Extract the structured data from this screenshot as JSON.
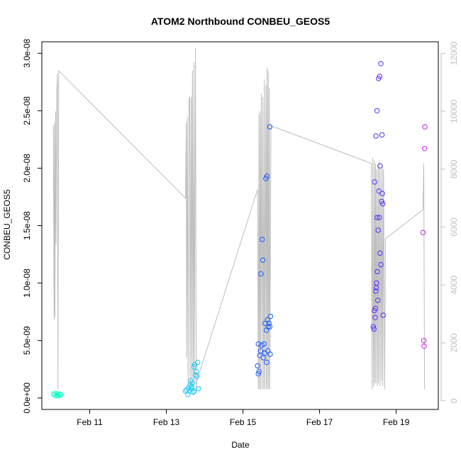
{
  "chart_data": {
    "type": "scatter",
    "title": "ATOM2 Northbound CONBEU_GEOS5",
    "xlabel": "Date",
    "ylabel": "CONBEU_GEOS5",
    "x_tick_labels": [
      "Feb 11",
      "Feb 13",
      "Feb 15",
      "Feb 17",
      "Feb 19"
    ],
    "x_ticks_day": [
      11,
      13,
      15,
      17,
      19
    ],
    "xlim_day": [
      9.75,
      20.1
    ],
    "y_tick_labels": [
      "0.0e+00",
      "5.0e-09",
      "1.0e-08",
      "1.5e-08",
      "2.0e-08",
      "2.5e-08",
      "3.0e-08"
    ],
    "y_ticks": [
      0,
      5e-09,
      1e-08,
      1.5e-08,
      2e-08,
      2.5e-08,
      3e-08
    ],
    "ylim": [
      -1e-09,
      3.1e-08
    ],
    "y2_tick_labels": [
      "0",
      "2000",
      "4000",
      "6000",
      "8000",
      "10000",
      "12000"
    ],
    "y2_ticks": [
      0,
      2000,
      4000,
      6000,
      8000,
      10000,
      12000
    ],
    "y2lim": [
      -300,
      12400
    ],
    "colors": {
      "axis": "#000000",
      "secondary_axis": "#bebebe",
      "altitude_line": "#bebebe"
    },
    "points": [
      {
        "x": 10.05,
        "y": 3.5e-10,
        "c": "#19ffc8"
      },
      {
        "x": 10.08,
        "y": 2.5e-10,
        "c": "#19ffc8"
      },
      {
        "x": 10.11,
        "y": 4e-10,
        "c": "#19ffc8"
      },
      {
        "x": 10.13,
        "y": 2e-10,
        "c": "#19ffc8"
      },
      {
        "x": 10.15,
        "y": 3e-10,
        "c": "#19ffc8"
      },
      {
        "x": 10.18,
        "y": 2e-10,
        "c": "#19ffc8"
      },
      {
        "x": 10.2,
        "y": 3.5e-10,
        "c": "#19ffc8"
      },
      {
        "x": 10.23,
        "y": 2.5e-10,
        "c": "#19ffc8"
      },
      {
        "x": 10.25,
        "y": 3e-10,
        "c": "#19ffc8"
      },
      {
        "x": 13.5,
        "y": 6e-10,
        "c": "#1cc8ff"
      },
      {
        "x": 13.53,
        "y": 7e-10,
        "c": "#1cc8ff"
      },
      {
        "x": 13.56,
        "y": 3e-10,
        "c": "#1cc8ff"
      },
      {
        "x": 13.58,
        "y": 9e-10,
        "c": "#1cc8ff"
      },
      {
        "x": 13.6,
        "y": 6e-10,
        "c": "#1cc8ff"
      },
      {
        "x": 13.62,
        "y": 1.1e-09,
        "c": "#1cc8ff"
      },
      {
        "x": 13.64,
        "y": 1.5e-09,
        "c": "#1cc8ff"
      },
      {
        "x": 13.66,
        "y": 8e-10,
        "c": "#1cc8ff"
      },
      {
        "x": 13.68,
        "y": 1.3e-09,
        "c": "#1cc8ff"
      },
      {
        "x": 13.7,
        "y": 5e-10,
        "c": "#1cc8ff"
      },
      {
        "x": 13.72,
        "y": 2.7e-09,
        "c": "#1cc8ff"
      },
      {
        "x": 13.74,
        "y": 2.9e-09,
        "c": "#1cc8ff"
      },
      {
        "x": 13.76,
        "y": 2e-09,
        "c": "#1cc8ff"
      },
      {
        "x": 13.78,
        "y": 2.3e-09,
        "c": "#1cc8ff"
      },
      {
        "x": 13.8,
        "y": 1.9e-09,
        "c": "#1cc8ff"
      },
      {
        "x": 13.82,
        "y": 3.1e-09,
        "c": "#1cc8ff"
      },
      {
        "x": 13.84,
        "y": 8e-10,
        "c": "#1cc8ff"
      },
      {
        "x": 13.66,
        "y": 1e-09,
        "c": "#1cc8ff"
      },
      {
        "x": 13.72,
        "y": 6e-10,
        "c": "#1cc8ff"
      },
      {
        "x": 15.38,
        "y": 2.8e-09,
        "c": "#1a5cff"
      },
      {
        "x": 15.4,
        "y": 2.1e-09,
        "c": "#1a5cff"
      },
      {
        "x": 15.42,
        "y": 2.3e-09,
        "c": "#1a5cff"
      },
      {
        "x": 15.4,
        "y": 4.7e-09,
        "c": "#1a5cff"
      },
      {
        "x": 15.44,
        "y": 3.7e-09,
        "c": "#1a5cff"
      },
      {
        "x": 15.46,
        "y": 4.1e-09,
        "c": "#1a5cff"
      },
      {
        "x": 15.47,
        "y": 1.08e-08,
        "c": "#1a5cff"
      },
      {
        "x": 15.49,
        "y": 4.6e-09,
        "c": "#1a5cff"
      },
      {
        "x": 15.5,
        "y": 1.38e-08,
        "c": "#1a5cff"
      },
      {
        "x": 15.52,
        "y": 1.2e-08,
        "c": "#1a5cff"
      },
      {
        "x": 15.53,
        "y": 3.5e-09,
        "c": "#1a5cff"
      },
      {
        "x": 15.55,
        "y": 4.7e-09,
        "c": "#1a5cff"
      },
      {
        "x": 15.57,
        "y": 3.9e-09,
        "c": "#1a5cff"
      },
      {
        "x": 15.58,
        "y": 6.5e-09,
        "c": "#1a5cff"
      },
      {
        "x": 15.6,
        "y": 1.91e-08,
        "c": "#1a5cff"
      },
      {
        "x": 15.61,
        "y": 5.9e-09,
        "c": "#1a5cff"
      },
      {
        "x": 15.62,
        "y": 3.1e-09,
        "c": "#1a5cff"
      },
      {
        "x": 15.63,
        "y": 1.93e-08,
        "c": "#1a5cff"
      },
      {
        "x": 15.64,
        "y": 6.8e-09,
        "c": "#1a5cff"
      },
      {
        "x": 15.65,
        "y": 4.1e-09,
        "c": "#1a5cff"
      },
      {
        "x": 15.66,
        "y": 6.2e-09,
        "c": "#1a5cff"
      },
      {
        "x": 15.68,
        "y": 6.5e-09,
        "c": "#1a5cff"
      },
      {
        "x": 15.7,
        "y": 2.36e-08,
        "c": "#1a5cff"
      },
      {
        "x": 15.71,
        "y": 3.8e-09,
        "c": "#1a5cff"
      },
      {
        "x": 15.72,
        "y": 7.1e-09,
        "c": "#1a5cff"
      },
      {
        "x": 15.7,
        "y": 6.2e-09,
        "c": "#1a5cff"
      },
      {
        "x": 18.4,
        "y": 6.2e-09,
        "c": "#5a2bff"
      },
      {
        "x": 18.42,
        "y": 6e-09,
        "c": "#5a2bff"
      },
      {
        "x": 18.43,
        "y": 7.6e-09,
        "c": "#5a2bff"
      },
      {
        "x": 18.44,
        "y": 1.88e-08,
        "c": "#5a2bff"
      },
      {
        "x": 18.45,
        "y": 7e-09,
        "c": "#5a2bff"
      },
      {
        "x": 18.46,
        "y": 7.8e-09,
        "c": "#5a2bff"
      },
      {
        "x": 18.47,
        "y": 2.28e-08,
        "c": "#5a2bff"
      },
      {
        "x": 18.48,
        "y": 9.6e-09,
        "c": "#5a2bff"
      },
      {
        "x": 18.49,
        "y": 1e-08,
        "c": "#5a2bff"
      },
      {
        "x": 18.5,
        "y": 2.5e-08,
        "c": "#5a2bff"
      },
      {
        "x": 18.51,
        "y": 1.1e-08,
        "c": "#5a2bff"
      },
      {
        "x": 18.5,
        "y": 1.57e-08,
        "c": "#5a2bff"
      },
      {
        "x": 18.52,
        "y": 8.5e-09,
        "c": "#5a2bff"
      },
      {
        "x": 18.53,
        "y": 1.46e-08,
        "c": "#5a2bff"
      },
      {
        "x": 18.54,
        "y": 2.78e-08,
        "c": "#5a2bff"
      },
      {
        "x": 18.55,
        "y": 1.8e-08,
        "c": "#5a2bff"
      },
      {
        "x": 18.56,
        "y": 1.57e-08,
        "c": "#5a2bff"
      },
      {
        "x": 18.57,
        "y": 2.8e-08,
        "c": "#5a2bff"
      },
      {
        "x": 18.58,
        "y": 2.02e-08,
        "c": "#5a2bff"
      },
      {
        "x": 18.58,
        "y": 1.26e-08,
        "c": "#5a2bff"
      },
      {
        "x": 18.6,
        "y": 2.91e-08,
        "c": "#5a2bff"
      },
      {
        "x": 18.6,
        "y": 1.16e-08,
        "c": "#5a2bff"
      },
      {
        "x": 18.62,
        "y": 1.71e-08,
        "c": "#5a2bff"
      },
      {
        "x": 18.63,
        "y": 2.29e-08,
        "c": "#5a2bff"
      },
      {
        "x": 18.64,
        "y": 1.78e-08,
        "c": "#5a2bff"
      },
      {
        "x": 18.65,
        "y": 1.69e-08,
        "c": "#5a2bff"
      },
      {
        "x": 18.66,
        "y": 7.2e-09,
        "c": "#5a2bff"
      },
      {
        "x": 18.47,
        "y": 9.3e-09,
        "c": "#5a2bff"
      },
      {
        "x": 19.7,
        "y": 1.44e-08,
        "c": "#c81ee6"
      },
      {
        "x": 19.72,
        "y": 5e-09,
        "c": "#c81ee6"
      },
      {
        "x": 19.73,
        "y": 4.5e-09,
        "c": "#c81ee6"
      },
      {
        "x": 19.74,
        "y": 2.17e-08,
        "c": "#c81ee6"
      },
      {
        "x": 19.75,
        "y": 2.36e-08,
        "c": "#c81ee6"
      }
    ],
    "altitude": [
      [
        10.05,
        9500
      ],
      [
        10.07,
        2800
      ],
      [
        10.08,
        9600
      ],
      [
        10.09,
        2900
      ],
      [
        10.11,
        10000
      ],
      [
        10.12,
        5400
      ],
      [
        10.14,
        10700
      ],
      [
        10.16,
        11300
      ],
      [
        10.17,
        400
      ],
      [
        10.19,
        11400
      ],
      [
        13.5,
        7000
      ],
      [
        13.52,
        9600
      ],
      [
        13.53,
        1500
      ],
      [
        13.55,
        9800
      ],
      [
        13.57,
        500
      ],
      [
        13.59,
        10400
      ],
      [
        13.61,
        10500
      ],
      [
        13.62,
        500
      ],
      [
        13.65,
        10500
      ],
      [
        13.66,
        500
      ],
      [
        13.68,
        11400
      ],
      [
        13.7,
        500
      ],
      [
        13.72,
        11700
      ],
      [
        13.73,
        600
      ],
      [
        13.76,
        12200
      ],
      [
        13.78,
        400
      ],
      [
        13.8,
        700
      ],
      [
        15.38,
        7300
      ],
      [
        15.4,
        400
      ],
      [
        15.42,
        9900
      ],
      [
        15.43,
        400
      ],
      [
        15.45,
        10000
      ],
      [
        15.46,
        400
      ],
      [
        15.48,
        10600
      ],
      [
        15.5,
        400
      ],
      [
        15.52,
        10500
      ],
      [
        15.54,
        400
      ],
      [
        15.56,
        11100
      ],
      [
        15.57,
        400
      ],
      [
        15.6,
        10900
      ],
      [
        15.61,
        400
      ],
      [
        15.63,
        11500
      ],
      [
        15.64,
        400
      ],
      [
        15.66,
        11400
      ],
      [
        15.67,
        400
      ],
      [
        15.69,
        10800
      ],
      [
        15.7,
        400
      ],
      [
        15.73,
        9500
      ],
      [
        18.35,
        8200
      ],
      [
        18.37,
        400
      ],
      [
        18.39,
        8400
      ],
      [
        18.41,
        500
      ],
      [
        18.43,
        8300
      ],
      [
        18.44,
        600
      ],
      [
        18.46,
        8200
      ],
      [
        18.47,
        600
      ],
      [
        18.49,
        8000
      ],
      [
        18.51,
        500
      ],
      [
        18.53,
        8100
      ],
      [
        18.54,
        600
      ],
      [
        18.56,
        8300
      ],
      [
        18.58,
        500
      ],
      [
        18.6,
        8000
      ],
      [
        18.62,
        700
      ],
      [
        18.64,
        8100
      ],
      [
        18.65,
        500
      ],
      [
        18.67,
        8000
      ],
      [
        18.7,
        400
      ],
      [
        18.72,
        5600
      ],
      [
        19.7,
        6600
      ],
      [
        19.72,
        8200
      ],
      [
        19.74,
        400
      ]
    ]
  }
}
